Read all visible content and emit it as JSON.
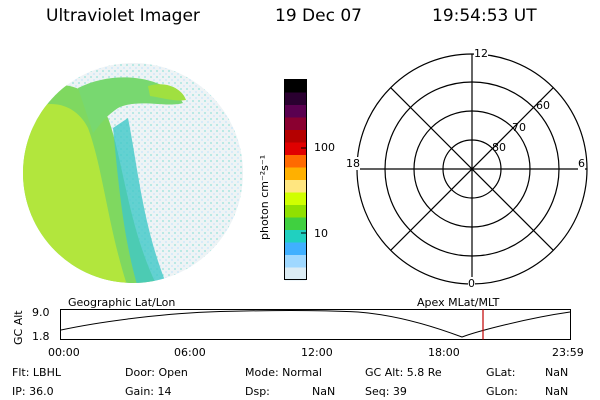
{
  "header": {
    "title": "Ultraviolet Imager",
    "date": "19 Dec 07",
    "time": "19:54:53 UT"
  },
  "colorbar": {
    "unit_label": "photon cm⁻²s⁻¹",
    "tick_100": "100",
    "tick_10": "10",
    "colors": [
      "#000000",
      "#2a0030",
      "#5a0050",
      "#8a0030",
      "#b40000",
      "#e00000",
      "#ff6a00",
      "#ffb000",
      "#ffe680",
      "#d0ff00",
      "#90e000",
      "#40d040",
      "#20d0c0",
      "#40b0ff",
      "#9fd8ff",
      "#dcecf4"
    ]
  },
  "polar_grid": {
    "label_12": "12",
    "label_18": "18",
    "label_6": "6",
    "label_0": "0",
    "label_60": "60",
    "label_70": "70",
    "label_80": "80"
  },
  "timeline": {
    "left_label": "Geographic Lat/Lon",
    "right_label": "Apex MLat/MLT",
    "axis_title": "GC Alt",
    "y_top": "9.0",
    "y_bottom": "1.8",
    "x_ticks": [
      "00:00",
      "06:00",
      "12:00",
      "18:00",
      "23:59"
    ],
    "marker_color": "#c00000"
  },
  "info": {
    "flt": "Flt: LBHL",
    "ip": "IP: 36.0",
    "door": "Door: Open",
    "gain": "Gain: 14",
    "mode": "Mode: Normal",
    "dsp": "Dsp:",
    "dsp_val": "NaN",
    "gc_alt": "GC Alt: 5.8 Re",
    "seq": "Seq: 39",
    "glat": "GLat:",
    "glat_val": "NaN",
    "glon": "GLon:",
    "glon_val": "NaN"
  }
}
